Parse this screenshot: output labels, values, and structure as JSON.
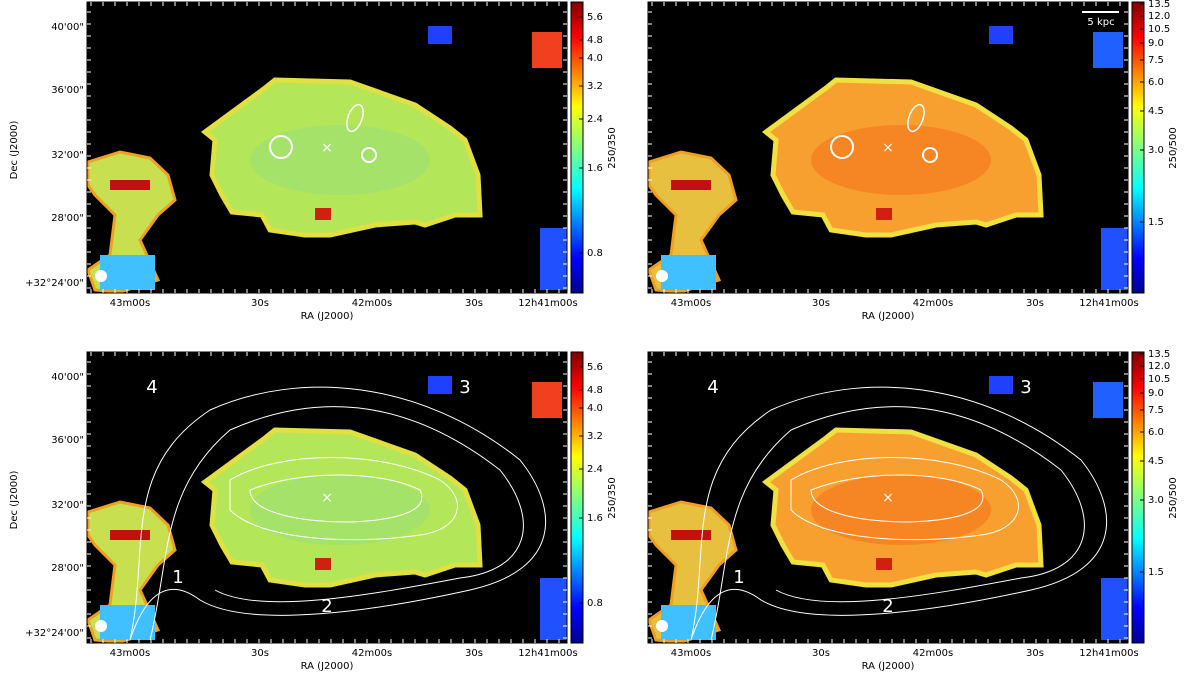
{
  "panels": [
    {
      "ylabel": "Dec (J2000)",
      "xlabel": "RA (J2000)",
      "yticks": [
        "40'00\"",
        "36'00\"",
        "32'00\"",
        "28'00\"",
        "+32°24'00\""
      ],
      "xticks": [
        "43m00s",
        "30s",
        "42m00s",
        "30s",
        "12h41m00s"
      ],
      "colorbar": {
        "label": "250/350",
        "ticks": [
          "5.6",
          "4.8",
          "4.0",
          "3.2",
          "2.4",
          "1.6",
          "0.8"
        ]
      }
    },
    {
      "xlabel": "RA (J2000)",
      "xticks": [
        "43m00s",
        "30s",
        "42m00s",
        "30s",
        "12h41m00s"
      ],
      "colorbar": {
        "label": "250/500",
        "ticks": [
          "13.5",
          "12.0",
          "10.5",
          "9.0",
          "7.5",
          "6.0",
          "4.5",
          "3.0",
          "1.5"
        ]
      },
      "scalebar": "5 kpc"
    },
    {
      "ylabel": "Dec (J2000)",
      "xlabel": "RA (J2000)",
      "yticks": [
        "40'00\"",
        "36'00\"",
        "32'00\"",
        "28'00\"",
        "+32°24'00\""
      ],
      "xticks": [
        "43m00s",
        "30s",
        "42m00s",
        "30s",
        "12h41m00s"
      ],
      "colorbar": {
        "label": "250/350",
        "ticks": [
          "5.6",
          "4.8",
          "4.0",
          "3.2",
          "2.4",
          "1.6",
          "0.8"
        ]
      },
      "regions": [
        "1",
        "2",
        "3",
        "4"
      ]
    },
    {
      "xlabel": "RA (J2000)",
      "xticks": [
        "43m00s",
        "30s",
        "42m00s",
        "30s",
        "12h41m00s"
      ],
      "colorbar": {
        "label": "250/500",
        "ticks": [
          "13.5",
          "12.0",
          "10.5",
          "9.0",
          "7.5",
          "6.0",
          "4.5",
          "3.0",
          "1.5"
        ]
      },
      "regions": [
        "1",
        "2",
        "3",
        "4"
      ]
    }
  ]
}
